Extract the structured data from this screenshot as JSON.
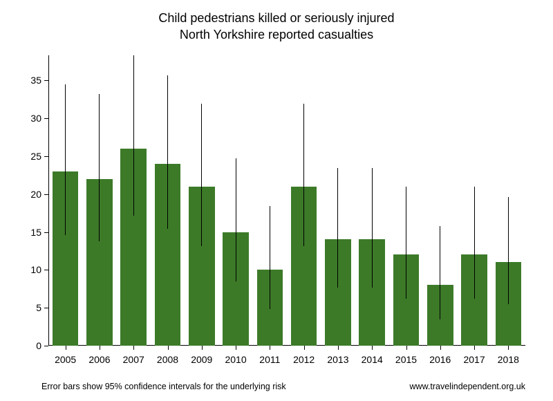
{
  "chart": {
    "type": "bar",
    "title_line1": "Child pedestrians killed or seriously injured",
    "title_line2": "North Yorkshire reported casualties",
    "title_fontsize": 18,
    "background_color": "#ffffff",
    "bar_color": "#3c7a28",
    "axis_color": "#000000",
    "text_color": "#000000",
    "errorbar_color": "#000000",
    "categories": [
      "2005",
      "2006",
      "2007",
      "2008",
      "2009",
      "2010",
      "2011",
      "2012",
      "2013",
      "2014",
      "2015",
      "2016",
      "2017",
      "2018"
    ],
    "values": [
      23,
      22,
      26,
      24,
      21,
      15,
      10,
      21,
      14,
      14,
      12,
      8,
      12,
      11
    ],
    "error_low": [
      14.6,
      13.8,
      17.1,
      15.4,
      13.1,
      8.5,
      4.8,
      13.1,
      7.7,
      7.7,
      6.2,
      3.5,
      6.2,
      5.5
    ],
    "error_high": [
      34.5,
      33.2,
      38.3,
      35.7,
      31.9,
      24.7,
      18.4,
      31.9,
      23.4,
      23.4,
      21.0,
      15.8,
      21.0,
      19.6
    ],
    "ylim": [
      0,
      38.3
    ],
    "yticks": [
      0,
      5,
      10,
      15,
      20,
      25,
      30,
      35
    ],
    "xlabel_fontsize": 14,
    "ylabel_fontsize": 14,
    "bar_width_ratio": 0.76,
    "footnote_left": "Error bars show 95% confidence intervals for the underlying risk",
    "footnote_right": "www.travelindependent.org.uk",
    "footnote_fontsize": 12.5
  }
}
